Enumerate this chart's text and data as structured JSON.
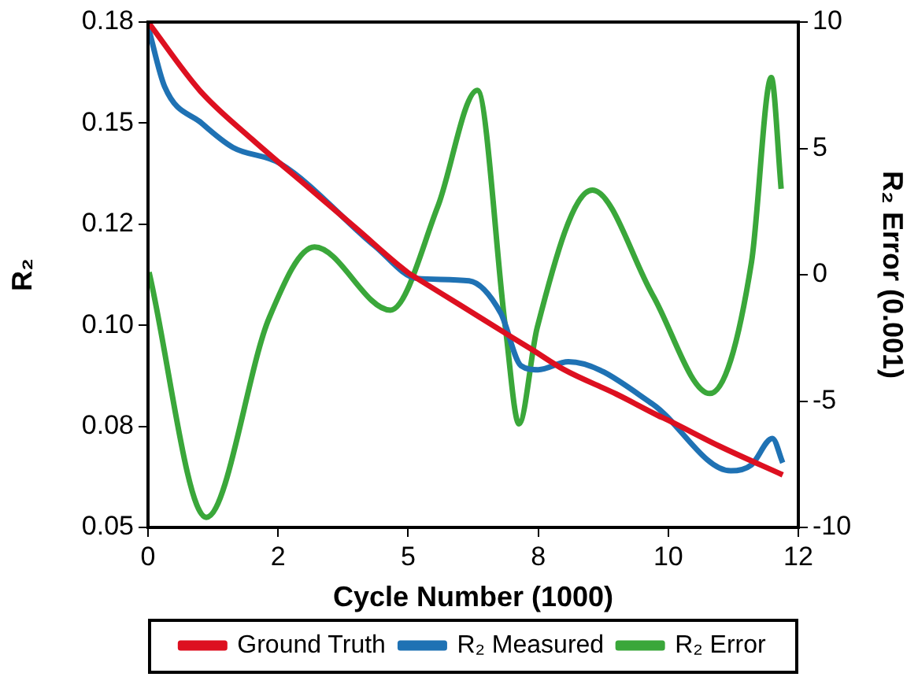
{
  "chart_data": {
    "type": "line",
    "xlabel": "Cycle Number (1000)",
    "ylabel": "R₂",
    "y2label": "R₂ Error (0.001)",
    "xlim": [
      0,
      12.5
    ],
    "xticks": [
      0,
      {
        "value": 2.5,
        "label": "2"
      },
      5,
      {
        "value": 7.5,
        "label": "8"
      },
      10,
      {
        "value": 12.5,
        "label": "12"
      }
    ],
    "ylim": [
      0.05,
      0.175
    ],
    "yticks": [
      {
        "value": 0.05,
        "label": "0.05"
      },
      {
        "value": 0.075,
        "label": "0.08"
      },
      {
        "value": 0.1,
        "label": "0.10"
      },
      {
        "value": 0.125,
        "label": "0.12"
      },
      {
        "value": 0.15,
        "label": "0.15"
      },
      {
        "value": 0.175,
        "label": "0.18"
      }
    ],
    "y2lim": [
      -10,
      10
    ],
    "y2ticks": [
      -10,
      -5,
      0,
      5,
      10
    ],
    "grid": false,
    "legend": "bottom",
    "marker": "none",
    "line_style": "solid",
    "series": [
      {
        "name": "Ground Truth",
        "color": "#dd1020",
        "x": [
          0,
          1,
          2,
          2.54,
          3,
          4,
          5,
          5.17,
          6,
          7,
          7.38,
          8,
          9,
          9.8,
          10,
          11,
          12.2
        ],
        "values": [
          0.175,
          0.158,
          0.146,
          0.14,
          0.135,
          0.124,
          0.113,
          0.1116,
          0.105,
          0.097,
          0.094,
          0.089,
          0.083,
          0.0777,
          0.0765,
          0.07,
          0.063
        ]
      },
      {
        "name": "R₂ Measured",
        "color": "#1f72b4",
        "x": [
          0,
          0.32,
          1.03,
          1.63,
          2.54,
          4.36,
          5.17,
          6.17,
          6.78,
          7.17,
          7.5,
          8.08,
          9.7,
          11.2,
          11.6,
          12.0,
          12.2
        ],
        "values": [
          0.174,
          0.159,
          0.15,
          0.144,
          0.14,
          0.1196,
          0.1116,
          0.111,
          0.103,
          0.09,
          0.089,
          0.091,
          0.0805,
          0.064,
          0.0655,
          0.072,
          0.066
        ]
      },
      {
        "name": "R₂ Error",
        "color": "#3aa73a",
        "axis": "y2",
        "x": [
          0.02,
          1.12,
          2.33,
          3.2,
          4.66,
          5.57,
          6.33,
          6.87,
          7.13,
          7.48,
          8.54,
          9.7,
          10.8,
          11.6,
          11.98,
          12.17
        ],
        "values": [
          0.1,
          -9.6,
          -1.7,
          1.1,
          -1.4,
          2.7,
          7.3,
          -2.1,
          -5.9,
          -2.1,
          3.35,
          -0.8,
          -4.7,
          0.5,
          7.8,
          3.4
        ]
      }
    ]
  }
}
